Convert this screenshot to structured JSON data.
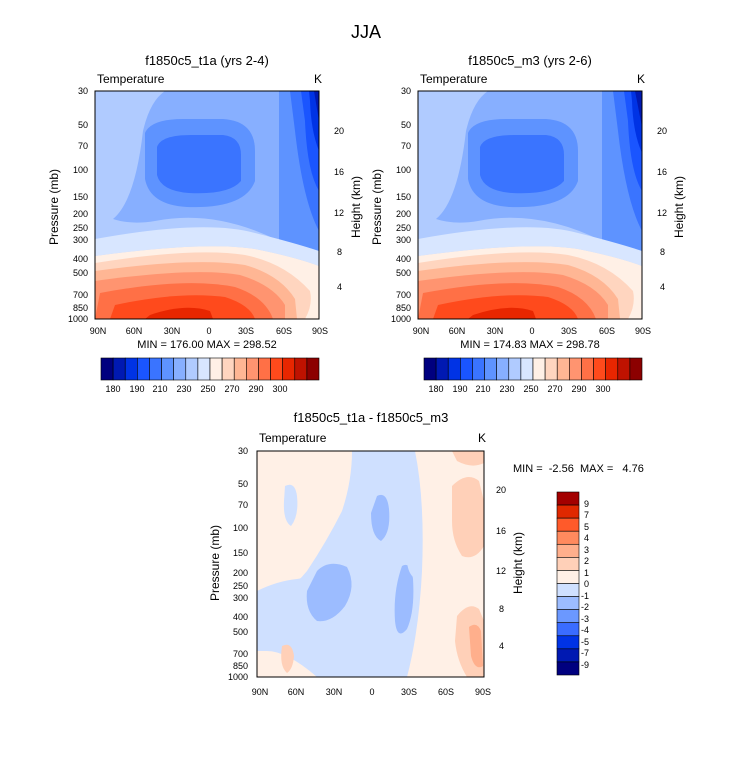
{
  "page_title": "JJA",
  "colormaps": {
    "temperature": [
      "#00007f",
      "#0019b2",
      "#0033e5",
      "#1a55ff",
      "#3a74ff",
      "#5e93ff",
      "#87afff",
      "#b0cbff",
      "#d8e6ff",
      "#fff0e6",
      "#ffd5bf",
      "#ffb694",
      "#ff9470",
      "#ff7046",
      "#ff4a1c",
      "#e82600",
      "#bf1200",
      "#8c0000"
    ],
    "difference": [
      "#00007f",
      "#0019b2",
      "#0033e5",
      "#3a6cff",
      "#6b98ff",
      "#9cbcff",
      "#cfe0ff",
      "#fff0e6",
      "#ffd0b8",
      "#ffaf8c",
      "#ff8a5e",
      "#ff5a2a",
      "#e02800",
      "#a30000"
    ]
  },
  "chart_data": [
    {
      "type": "heatmap",
      "id": "t1a",
      "title": "f1850c5_t1a (yrs 2-4)",
      "left_label": "Temperature",
      "right_label": "K",
      "ylabel": "Pressure (mb)",
      "y2label": "Height (km)",
      "x_ticks": [
        "90N",
        "60N",
        "30N",
        "0",
        "30S",
        "60S",
        "90S"
      ],
      "y_ticks": [
        "30",
        "50",
        "70",
        "100",
        "150",
        "200",
        "250",
        "300",
        "400",
        "500",
        "700",
        "850",
        "1000"
      ],
      "y2_ticks": [
        "20",
        "16",
        "12",
        "8",
        "4"
      ],
      "stats_text": "MIN = 176.00  MAX = 298.52",
      "min": 176.0,
      "max": 298.52,
      "colorbar_labels": [
        "180",
        "190",
        "210",
        "230",
        "250",
        "270",
        "290",
        "300"
      ]
    },
    {
      "type": "heatmap",
      "id": "m3",
      "title": "f1850c5_m3 (yrs 2-6)",
      "left_label": "Temperature",
      "right_label": "K",
      "ylabel": "Pressure (mb)",
      "y2label": "Height (km)",
      "x_ticks": [
        "90N",
        "60N",
        "30N",
        "0",
        "30S",
        "60S",
        "90S"
      ],
      "y_ticks": [
        "30",
        "50",
        "70",
        "100",
        "150",
        "200",
        "250",
        "300",
        "400",
        "500",
        "700",
        "850",
        "1000"
      ],
      "y2_ticks": [
        "20",
        "16",
        "12",
        "8",
        "4"
      ],
      "stats_text": "MIN = 174.83  MAX = 298.78",
      "min": 174.83,
      "max": 298.78,
      "colorbar_labels": [
        "180",
        "190",
        "210",
        "230",
        "250",
        "270",
        "290",
        "300"
      ]
    },
    {
      "type": "heatmap",
      "id": "diff",
      "title": "f1850c5_t1a - f1850c5_m3",
      "left_label": "Temperature",
      "right_label": "K",
      "ylabel": "Pressure (mb)",
      "y2label": "Height (km)",
      "x_ticks": [
        "90N",
        "60N",
        "30N",
        "0",
        "30S",
        "60S",
        "90S"
      ],
      "y_ticks": [
        "30",
        "50",
        "70",
        "100",
        "150",
        "200",
        "250",
        "300",
        "400",
        "500",
        "700",
        "850",
        "1000"
      ],
      "y2_ticks": [
        "20",
        "16",
        "12",
        "8",
        "4"
      ],
      "stats_text": "MIN =  -2.56  MAX =   4.76",
      "min": -2.56,
      "max": 4.76,
      "colorbar_labels": [
        "9",
        "7",
        "5",
        "4",
        "3",
        "2",
        "1",
        "0",
        "-1",
        "-2",
        "-3",
        "-4",
        "-5",
        "-7",
        "-9"
      ]
    }
  ]
}
